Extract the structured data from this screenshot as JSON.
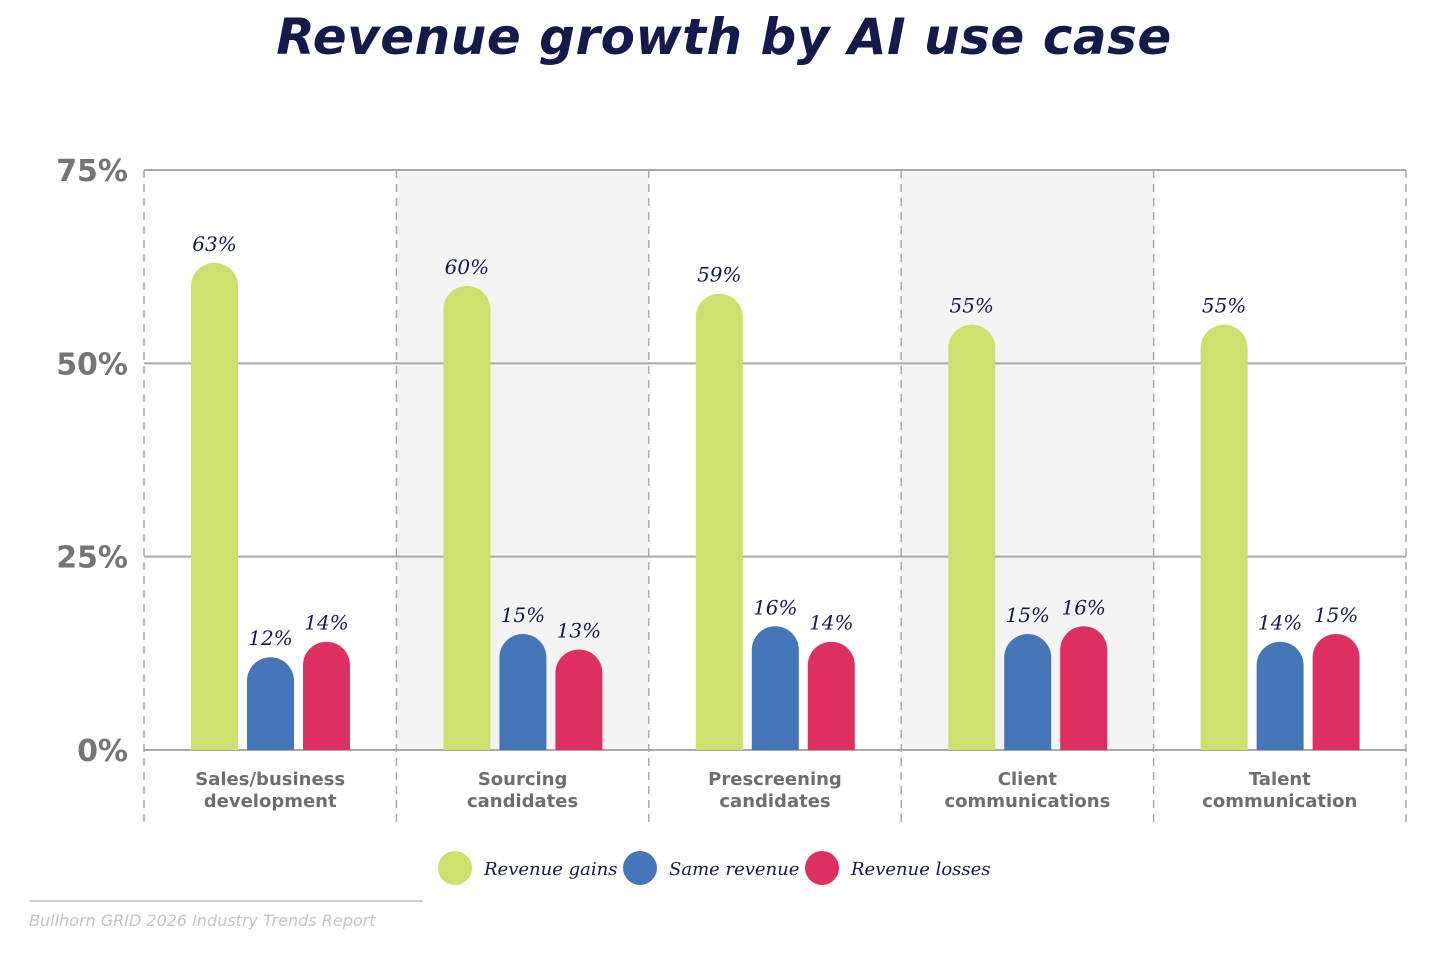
{
  "chart_data": {
    "type": "bar",
    "title": "Revenue growth by AI use case",
    "categories": [
      "Sales/business development",
      "Sourcing candidates",
      "Prescreening candidates",
      "Client communications",
      "Talent communication"
    ],
    "category_lines": [
      [
        "Sales/business",
        "development"
      ],
      [
        "Sourcing",
        "candidates"
      ],
      [
        "Prescreening",
        "candidates"
      ],
      [
        "Client",
        "communications"
      ],
      [
        "Talent",
        "communication"
      ]
    ],
    "series": [
      {
        "name": "Revenue gains",
        "color": "#cddf6e",
        "values": [
          63,
          60,
          59,
          55,
          55
        ]
      },
      {
        "name": "Same revenue",
        "color": "#4576b8",
        "values": [
          12,
          15,
          16,
          15,
          14
        ]
      },
      {
        "name": "Revenue losses",
        "color": "#de3060",
        "values": [
          14,
          13,
          14,
          16,
          15
        ]
      }
    ],
    "ylim": [
      0,
      75
    ],
    "yticks": [
      0,
      25,
      50,
      75
    ],
    "ytick_labels": [
      "0%",
      "25%",
      "50%",
      "75%"
    ],
    "value_suffix": "%",
    "grid": true,
    "legend_position": "bottom",
    "xlabel": "",
    "ylabel": ""
  },
  "source": "Bullhorn GRID 2026 Industry Trends Report"
}
